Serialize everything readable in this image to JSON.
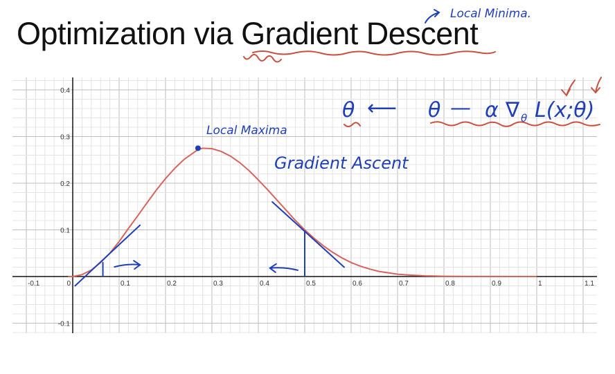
{
  "slide": {
    "title": "Optimization via Gradient Descent"
  },
  "annotations": {
    "top_note": "Local Minima.",
    "max_label": "Local Maxima",
    "ascent_label": "Gradient Ascent",
    "formula": {
      "theta_lhs": "θ",
      "arrow": "⟵",
      "theta_rhs": "θ",
      "minus": "—",
      "alpha": "α",
      "grad": "∇",
      "grad_sub": "θ",
      "loss": "L(x;θ)"
    }
  },
  "colors": {
    "curve": "#d9635a",
    "ink_blue": "#1f3fb8",
    "ink_red": "#c9503f",
    "grid_minor": "#e4e4e4",
    "grid_major": "#bdbdbd",
    "axis": "#111111"
  },
  "chart_data": {
    "type": "line",
    "xlim": [
      -0.1,
      1.1
    ],
    "ylim": [
      -0.1,
      0.4
    ],
    "grid": true,
    "x_ticks": [
      "-0.1",
      "0",
      "0.1",
      "0.2",
      "0.3",
      "0.4",
      "0.5",
      "0.6",
      "0.7",
      "0.8",
      "0.9",
      "1",
      "1.1"
    ],
    "y_ticks": [
      "0.4",
      "0.3",
      "0.2",
      "0.1",
      "-0.1"
    ],
    "x_tick_values": [
      -0.1,
      0,
      0.1,
      0.2,
      0.3,
      0.4,
      0.5,
      0.6,
      0.7,
      0.8,
      0.9,
      1.0,
      1.1
    ],
    "y_tick_values": [
      0.4,
      0.3,
      0.2,
      0.1,
      -0.1
    ],
    "series": [
      {
        "color": "#d9635a",
        "x": [
          0,
          0.02,
          0.04,
          0.06,
          0.08,
          0.1,
          0.12,
          0.14,
          0.16,
          0.18,
          0.2,
          0.22,
          0.24,
          0.26,
          0.27,
          0.28,
          0.3,
          0.32,
          0.34,
          0.36,
          0.38,
          0.4,
          0.42,
          0.44,
          0.46,
          0.48,
          0.5,
          0.52,
          0.54,
          0.56,
          0.58,
          0.6,
          0.62,
          0.64,
          0.66,
          0.68,
          0.7,
          0.72,
          0.74,
          0.76,
          0.78,
          0.8,
          0.85,
          0.9,
          0.95,
          1.0
        ],
        "y": [
          0,
          0.004,
          0.014,
          0.03,
          0.05,
          0.075,
          0.103,
          0.13,
          0.158,
          0.185,
          0.21,
          0.232,
          0.251,
          0.265,
          0.272,
          0.275,
          0.274,
          0.268,
          0.258,
          0.244,
          0.227,
          0.207,
          0.186,
          0.164,
          0.142,
          0.12,
          0.1,
          0.082,
          0.066,
          0.052,
          0.04,
          0.03,
          0.022,
          0.016,
          0.011,
          0.008,
          0.005,
          0.0035,
          0.0023,
          0.0015,
          0.001,
          0.0006,
          0.0002,
          0.0001,
          3e-05,
          0
        ]
      }
    ],
    "points": [
      {
        "label": "Local Maxima",
        "x": 0.27,
        "y": 0.275
      }
    ],
    "tangent_lines": [
      {
        "x0": 0.005,
        "y0": -0.02,
        "x1": 0.145,
        "y1": 0.11
      },
      {
        "x0": 0.43,
        "y0": 0.16,
        "x1": 0.585,
        "y1": 0.02
      }
    ],
    "vertical_marks": [
      {
        "x": 0.065,
        "y0": 0,
        "y1": 0.03
      },
      {
        "x": 0.5,
        "y0": 0,
        "y1": 0.098
      }
    ],
    "direction_arrows": [
      {
        "x0": 0.09,
        "x1": 0.145,
        "y": 0.025
      },
      {
        "x0": 0.485,
        "x1": 0.425,
        "y": 0.018
      }
    ]
  }
}
